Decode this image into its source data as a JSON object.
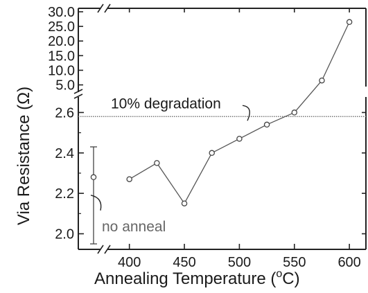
{
  "chart_data": {
    "type": "scatter",
    "xlabel": "Annealing Temperature (",
    "xlabel_sup": "o",
    "xlabel_unit_end": "C)",
    "ylabel": "Via Resistance (Ω)",
    "x_ticks": [
      "400",
      "450",
      "500",
      "550",
      "600"
    ],
    "x_tick_values": [
      400,
      450,
      500,
      550,
      600
    ],
    "y_ticks_lower": [
      "2.0",
      "2.2",
      "2.4",
      "2.6"
    ],
    "y_tick_values_lower": [
      2.0,
      2.2,
      2.4,
      2.6
    ],
    "y_ticks_upper": [
      "5.0",
      "10.0",
      "15.0",
      "20.0",
      "25.0",
      "30.0"
    ],
    "y_tick_values_upper": [
      5,
      10,
      15,
      20,
      25,
      30
    ],
    "y_axis_break": true,
    "x_axis_break": true,
    "xlim": [
      375,
      610
    ],
    "ylim_lower": [
      1.94,
      2.67
    ],
    "ylim_upper": [
      3.0,
      30.0
    ],
    "series": [
      {
        "x": [
          400,
          425,
          450,
          475,
          500,
          525,
          550,
          575,
          600
        ],
        "y": [
          2.27,
          2.35,
          2.15,
          2.4,
          2.47,
          2.54,
          2.6,
          6.5,
          26.5
        ]
      }
    ],
    "no_anneal": {
      "label": "no anneal",
      "value": 2.28,
      "error_low": 1.95,
      "error_high": 2.43
    },
    "threshold": {
      "label": "10% degradation",
      "value": 2.58
    },
    "color_line": "#555555",
    "color_marker": "#444444",
    "color_threshold": "#777777"
  }
}
